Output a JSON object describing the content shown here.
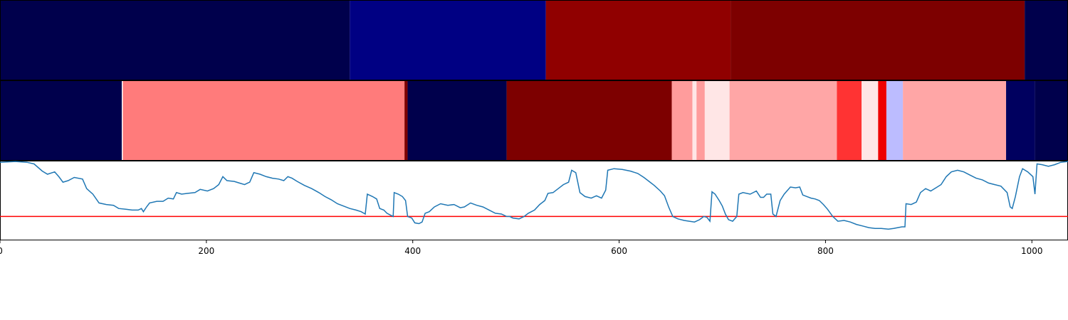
{
  "chart_data": {
    "type": "heatmap",
    "xlim": [
      0,
      1035
    ],
    "x_ticks": [
      "0",
      "200",
      "400",
      "600",
      "800",
      "1000"
    ],
    "x_tick_values": [
      0,
      200,
      400,
      600,
      800,
      1000
    ],
    "colormap": "seismic",
    "grid": false,
    "rows": [
      {
        "segments": [
          {
            "start": 0,
            "end": 339,
            "color": "#00004c"
          },
          {
            "start": 339,
            "end": 529,
            "color": "#000083"
          },
          {
            "start": 529,
            "end": 708,
            "color": "#900000"
          },
          {
            "start": 708,
            "end": 993,
            "color": "#7d0000"
          },
          {
            "start": 993,
            "end": 1035,
            "color": "#00004c"
          }
        ]
      },
      {
        "segments": [
          {
            "start": 0,
            "end": 118,
            "color": "#00004c"
          },
          {
            "start": 118,
            "end": 119,
            "color": "#ffffff"
          },
          {
            "start": 119,
            "end": 392,
            "color": "#ff7b7b"
          },
          {
            "start": 392,
            "end": 395,
            "color": "#7d0000"
          },
          {
            "start": 395,
            "end": 491,
            "color": "#00004c"
          },
          {
            "start": 491,
            "end": 651,
            "color": "#7d0000"
          },
          {
            "start": 651,
            "end": 671,
            "color": "#ff9c9c"
          },
          {
            "start": 671,
            "end": 675,
            "color": "#ffe6e6"
          },
          {
            "start": 675,
            "end": 683,
            "color": "#ff9c9c"
          },
          {
            "start": 683,
            "end": 707,
            "color": "#ffe6e6"
          },
          {
            "start": 707,
            "end": 811,
            "color": "#ffa6a6"
          },
          {
            "start": 811,
            "end": 835,
            "color": "#ff3333"
          },
          {
            "start": 835,
            "end": 851,
            "color": "#ffe6e6"
          },
          {
            "start": 851,
            "end": 859,
            "color": "#ee0000"
          },
          {
            "start": 859,
            "end": 875,
            "color": "#bcbcff"
          },
          {
            "start": 875,
            "end": 975,
            "color": "#ffa6a6"
          },
          {
            "start": 975,
            "end": 1003,
            "color": "#00005f"
          },
          {
            "start": 1003,
            "end": 1035,
            "color": "#00004c"
          }
        ]
      }
    ],
    "line": {
      "color": "#1f77b4",
      "ylim": [
        0,
        1
      ],
      "points": [
        [
          0,
          0.98
        ],
        [
          15,
          0.99
        ],
        [
          26,
          0.98
        ],
        [
          33,
          0.96
        ],
        [
          41,
          0.87
        ],
        [
          46,
          0.83
        ],
        [
          53,
          0.86
        ],
        [
          57,
          0.8
        ],
        [
          61,
          0.73
        ],
        [
          66,
          0.75
        ],
        [
          72,
          0.79
        ],
        [
          80,
          0.77
        ],
        [
          84,
          0.65
        ],
        [
          90,
          0.58
        ],
        [
          96,
          0.47
        ],
        [
          103,
          0.45
        ],
        [
          110,
          0.44
        ],
        [
          115,
          0.4
        ],
        [
          122,
          0.39
        ],
        [
          128,
          0.38
        ],
        [
          134,
          0.38
        ],
        [
          137,
          0.4
        ],
        [
          139,
          0.36
        ],
        [
          142,
          0.42
        ],
        [
          145,
          0.47
        ],
        [
          152,
          0.49
        ],
        [
          158,
          0.49
        ],
        [
          163,
          0.53
        ],
        [
          168,
          0.52
        ],
        [
          171,
          0.6
        ],
        [
          176,
          0.58
        ],
        [
          182,
          0.59
        ],
        [
          189,
          0.6
        ],
        [
          194,
          0.64
        ],
        [
          201,
          0.62
        ],
        [
          207,
          0.65
        ],
        [
          212,
          0.7
        ],
        [
          216,
          0.8
        ],
        [
          220,
          0.75
        ],
        [
          227,
          0.74
        ],
        [
          232,
          0.72
        ],
        [
          237,
          0.7
        ],
        [
          240,
          0.72
        ],
        [
          242,
          0.73
        ],
        [
          246,
          0.85
        ],
        [
          252,
          0.83
        ],
        [
          258,
          0.8
        ],
        [
          264,
          0.78
        ],
        [
          270,
          0.77
        ],
        [
          275,
          0.75
        ],
        [
          279,
          0.8
        ],
        [
          283,
          0.78
        ],
        [
          288,
          0.74
        ],
        [
          295,
          0.69
        ],
        [
          302,
          0.65
        ],
        [
          309,
          0.6
        ],
        [
          315,
          0.55
        ],
        [
          321,
          0.51
        ],
        [
          327,
          0.46
        ],
        [
          333,
          0.43
        ],
        [
          339,
          0.4
        ],
        [
          345,
          0.38
        ],
        [
          350,
          0.36
        ],
        [
          354,
          0.33
        ],
        [
          356,
          0.58
        ],
        [
          361,
          0.55
        ],
        [
          365,
          0.52
        ],
        [
          368,
          0.4
        ],
        [
          372,
          0.38
        ],
        [
          375,
          0.34
        ],
        [
          378,
          0.32
        ],
        [
          381,
          0.3
        ],
        [
          382,
          0.6
        ],
        [
          386,
          0.58
        ],
        [
          390,
          0.55
        ],
        [
          393,
          0.5
        ],
        [
          395,
          0.3
        ],
        [
          399,
          0.28
        ],
        [
          402,
          0.22
        ],
        [
          406,
          0.21
        ],
        [
          409,
          0.23
        ],
        [
          412,
          0.34
        ],
        [
          416,
          0.36
        ],
        [
          421,
          0.42
        ],
        [
          427,
          0.46
        ],
        [
          434,
          0.44
        ],
        [
          440,
          0.45
        ],
        [
          446,
          0.41
        ],
        [
          450,
          0.42
        ],
        [
          456,
          0.47
        ],
        [
          462,
          0.44
        ],
        [
          468,
          0.42
        ],
        [
          474,
          0.38
        ],
        [
          480,
          0.34
        ],
        [
          486,
          0.33
        ],
        [
          491,
          0.3
        ],
        [
          494,
          0.3
        ],
        [
          497,
          0.28
        ],
        [
          503,
          0.27
        ],
        [
          508,
          0.3
        ],
        [
          512,
          0.34
        ],
        [
          518,
          0.38
        ],
        [
          523,
          0.45
        ],
        [
          528,
          0.5
        ],
        [
          531,
          0.59
        ],
        [
          536,
          0.6
        ],
        [
          541,
          0.65
        ],
        [
          546,
          0.7
        ],
        [
          551,
          0.73
        ],
        [
          554,
          0.88
        ],
        [
          558,
          0.85
        ],
        [
          562,
          0.6
        ],
        [
          567,
          0.55
        ],
        [
          573,
          0.53
        ],
        [
          578,
          0.56
        ],
        [
          583,
          0.53
        ],
        [
          587,
          0.63
        ],
        [
          589,
          0.88
        ],
        [
          595,
          0.9
        ],
        [
          603,
          0.89
        ],
        [
          611,
          0.87
        ],
        [
          618,
          0.84
        ],
        [
          624,
          0.79
        ],
        [
          629,
          0.74
        ],
        [
          634,
          0.69
        ],
        [
          640,
          0.62
        ],
        [
          644,
          0.56
        ],
        [
          648,
          0.42
        ],
        [
          652,
          0.3
        ],
        [
          657,
          0.27
        ],
        [
          663,
          0.25
        ],
        [
          668,
          0.24
        ],
        [
          673,
          0.23
        ],
        [
          678,
          0.26
        ],
        [
          682,
          0.3
        ],
        [
          685,
          0.29
        ],
        [
          688,
          0.24
        ],
        [
          690,
          0.61
        ],
        [
          693,
          0.58
        ],
        [
          697,
          0.5
        ],
        [
          700,
          0.43
        ],
        [
          703,
          0.33
        ],
        [
          706,
          0.26
        ],
        [
          710,
          0.24
        ],
        [
          714,
          0.3
        ],
        [
          716,
          0.58
        ],
        [
          720,
          0.6
        ],
        [
          727,
          0.58
        ],
        [
          733,
          0.62
        ],
        [
          737,
          0.54
        ],
        [
          740,
          0.54
        ],
        [
          743,
          0.58
        ],
        [
          747,
          0.58
        ],
        [
          749,
          0.33
        ],
        [
          752,
          0.3
        ],
        [
          756,
          0.5
        ],
        [
          760,
          0.58
        ],
        [
          766,
          0.67
        ],
        [
          771,
          0.66
        ],
        [
          775,
          0.67
        ],
        [
          778,
          0.57
        ],
        [
          782,
          0.55
        ],
        [
          786,
          0.53
        ],
        [
          790,
          0.52
        ],
        [
          794,
          0.5
        ],
        [
          798,
          0.45
        ],
        [
          802,
          0.39
        ],
        [
          807,
          0.3
        ],
        [
          812,
          0.24
        ],
        [
          818,
          0.25
        ],
        [
          824,
          0.23
        ],
        [
          830,
          0.2
        ],
        [
          836,
          0.18
        ],
        [
          842,
          0.16
        ],
        [
          848,
          0.15
        ],
        [
          854,
          0.15
        ],
        [
          861,
          0.14
        ],
        [
          866,
          0.15
        ],
        [
          870,
          0.16
        ],
        [
          874,
          0.17
        ],
        [
          877,
          0.17
        ],
        [
          878,
          0.46
        ],
        [
          883,
          0.45
        ],
        [
          888,
          0.48
        ],
        [
          892,
          0.6
        ],
        [
          897,
          0.65
        ],
        [
          902,
          0.62
        ],
        [
          907,
          0.66
        ],
        [
          912,
          0.7
        ],
        [
          917,
          0.8
        ],
        [
          922,
          0.86
        ],
        [
          928,
          0.88
        ],
        [
          934,
          0.86
        ],
        [
          940,
          0.82
        ],
        [
          946,
          0.78
        ],
        [
          952,
          0.76
        ],
        [
          958,
          0.72
        ],
        [
          964,
          0.7
        ],
        [
          970,
          0.68
        ],
        [
          976,
          0.6
        ],
        [
          979,
          0.42
        ],
        [
          981,
          0.4
        ],
        [
          984,
          0.55
        ],
        [
          988,
          0.8
        ],
        [
          991,
          0.9
        ],
        [
          996,
          0.86
        ],
        [
          1001,
          0.8
        ],
        [
          1003,
          0.58
        ],
        [
          1005,
          0.96
        ],
        [
          1010,
          0.95
        ],
        [
          1016,
          0.93
        ],
        [
          1022,
          0.95
        ],
        [
          1028,
          0.98
        ],
        [
          1035,
          0.99
        ]
      ]
    },
    "hline": {
      "y": 0.3,
      "color": "#ff0000"
    }
  }
}
